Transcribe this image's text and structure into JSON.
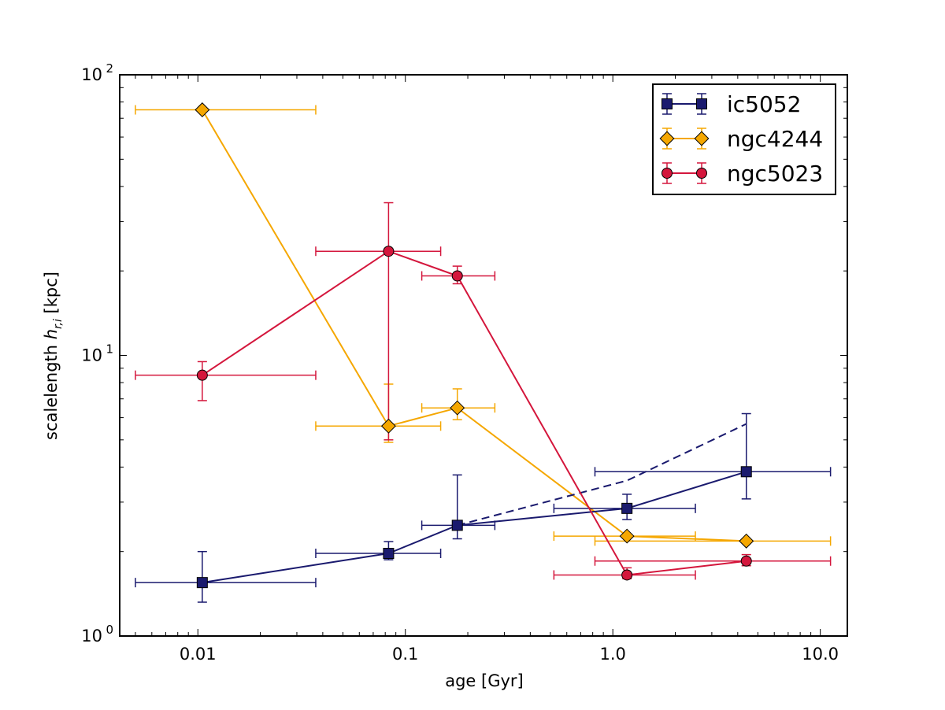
{
  "chart_data": {
    "type": "scatter",
    "title": "",
    "xlabel": "age [Gyr]",
    "ylabel_prefix": "scalelength ",
    "ylabel_symbol": "h",
    "ylabel_subscript": "r,i",
    "ylabel_suffix": " [kpc]",
    "xscale": "log",
    "yscale": "log",
    "xlim": [
      0.0042,
      13.5
    ],
    "ylim": [
      1,
      100
    ],
    "x_ticks": [
      {
        "value": 0.01,
        "label": "0.01"
      },
      {
        "value": 0.1,
        "label": "0.1"
      },
      {
        "value": 1,
        "label": "1.0"
      },
      {
        "value": 10,
        "label": "10.0"
      }
    ],
    "y_ticks": [
      {
        "value": 1,
        "base": "10",
        "exp": "0"
      },
      {
        "value": 10,
        "base": "10",
        "exp": "1"
      },
      {
        "value": 100,
        "base": "10",
        "exp": "2"
      }
    ],
    "legend_position": "top-right",
    "series": [
      {
        "name": "ic5052",
        "color": "#1a1a6e",
        "marker": "square",
        "points": [
          {
            "x": 0.0105,
            "y": 1.55,
            "xlo": 0.005,
            "xhi": 0.037,
            "ylo": 1.32,
            "yhi": 2.0
          },
          {
            "x": 0.083,
            "y": 1.97,
            "xlo": 0.037,
            "xhi": 0.148,
            "ylo": 1.87,
            "yhi": 2.17
          },
          {
            "x": 0.178,
            "y": 2.48,
            "xlo": 0.12,
            "xhi": 0.27,
            "ylo": 2.22,
            "yhi": 3.75
          },
          {
            "x": 1.17,
            "y": 2.85,
            "xlo": 0.52,
            "xhi": 2.5,
            "ylo": 2.6,
            "yhi": 3.2
          },
          {
            "x": 4.4,
            "y": 3.85,
            "xlo": 0.82,
            "xhi": 11.2,
            "ylo": 3.08,
            "yhi": 6.2
          }
        ],
        "dashed": [
          {
            "x": 0.178,
            "y": 2.48
          },
          {
            "x": 1.17,
            "y": 3.58
          },
          {
            "x": 4.4,
            "y": 5.7
          }
        ]
      },
      {
        "name": "ngc4244",
        "color": "#f5a700",
        "marker": "diamond",
        "points": [
          {
            "x": 0.0105,
            "y": 75,
            "xlo": 0.005,
            "xhi": 0.037
          },
          {
            "x": 0.083,
            "y": 5.6,
            "xlo": 0.037,
            "xhi": 0.148,
            "ylo": 4.9,
            "yhi": 7.9
          },
          {
            "x": 0.178,
            "y": 6.5,
            "xlo": 0.12,
            "xhi": 0.27,
            "ylo": 5.9,
            "yhi": 7.6
          },
          {
            "x": 1.17,
            "y": 2.27,
            "xlo": 0.52,
            "xhi": 2.5
          },
          {
            "x": 4.4,
            "y": 2.18,
            "xlo": 0.82,
            "xhi": 11.2
          }
        ]
      },
      {
        "name": "ngc5023",
        "color": "#d4163c",
        "marker": "circle",
        "points": [
          {
            "x": 0.0105,
            "y": 8.5,
            "xlo": 0.005,
            "xhi": 0.037,
            "ylo": 6.9,
            "yhi": 9.5
          },
          {
            "x": 0.083,
            "y": 23.5,
            "xlo": 0.037,
            "xhi": 0.148,
            "ylo": 5.0,
            "yhi": 35
          },
          {
            "x": 0.178,
            "y": 19.2,
            "xlo": 0.12,
            "xhi": 0.27,
            "ylo": 18.0,
            "yhi": 20.8
          },
          {
            "x": 1.17,
            "y": 1.65,
            "xlo": 0.52,
            "xhi": 2.5,
            "ylo": 1.6,
            "yhi": 1.75
          },
          {
            "x": 4.4,
            "y": 1.85,
            "xlo": 0.82,
            "xhi": 11.2,
            "ylo": 1.78,
            "yhi": 1.95
          }
        ]
      }
    ]
  }
}
